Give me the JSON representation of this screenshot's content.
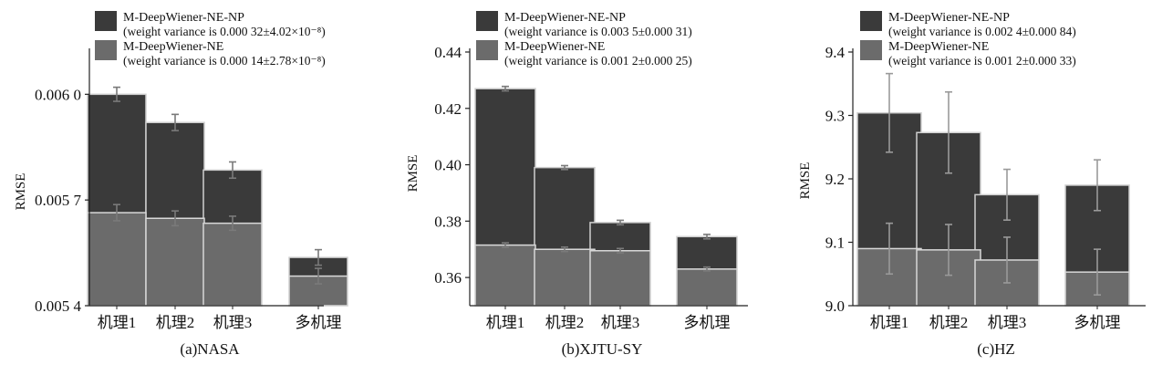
{
  "chart_data": [
    {
      "type": "bar",
      "caption": "(a)NASA",
      "ylabel": "RMSE",
      "categories": [
        "机理1",
        "机理2",
        "机理3",
        "多机理"
      ],
      "ylim": [
        0.0054,
        0.00612
      ],
      "yticks": [
        0.0054,
        0.0057,
        0.006
      ],
      "ytick_labels": [
        "0.005 4",
        "0.005 7",
        "0.006 0"
      ],
      "legend": [
        {
          "line1": "M-DeepWiener-NE-NP",
          "line2": "(weight variance is 0.000 32±4.02×10⁻⁸)",
          "color": "#3a3a3a"
        },
        {
          "line1": "M-DeepWiener-NE",
          "line2": "(weight variance is 0.000 14±2.78×10⁻⁸)",
          "color": "#6b6b6b"
        }
      ],
      "series": [
        {
          "name": "M-DeepWiener-NE-NP",
          "color": "#3a3a3a",
          "values": [
            0.006,
            0.00592,
            0.005785,
            0.005537
          ],
          "error": [
            2e-05,
            2.3e-05,
            2.3e-05,
            2.2e-05
          ]
        },
        {
          "name": "M-DeepWiener-NE",
          "color": "#6b6b6b",
          "values": [
            0.005664,
            0.005648,
            0.005634,
            0.005484
          ],
          "error": [
            2.3e-05,
            2.1e-05,
            2e-05,
            2.2e-05
          ]
        }
      ]
    },
    {
      "type": "bar",
      "caption": "(b)XJTU-SY",
      "ylabel": "RMSE",
      "categories": [
        "机理1",
        "机理2",
        "机理3",
        "多机理"
      ],
      "ylim": [
        0.35,
        0.44
      ],
      "yticks": [
        0.36,
        0.38,
        0.4,
        0.42,
        0.44
      ],
      "ytick_labels": [
        "0.36",
        "0.38",
        "0.40",
        "0.42",
        "0.44"
      ],
      "legend": [
        {
          "line1": "M-DeepWiener-NE-NP",
          "line2": "(weight variance is 0.003 5±0.000 31)",
          "color": "#3a3a3a"
        },
        {
          "line1": "M-DeepWiener-NE",
          "line2": "(weight variance is 0.001 2±0.000 25)",
          "color": "#6b6b6b"
        }
      ],
      "series": [
        {
          "name": "M-DeepWiener-NE-NP",
          "color": "#3a3a3a",
          "values": [
            0.427,
            0.399,
            0.3795,
            0.3745
          ],
          "error": [
            0.0008,
            0.0007,
            0.0008,
            0.0008
          ]
        },
        {
          "name": "M-DeepWiener-NE",
          "color": "#6b6b6b",
          "values": [
            0.3715,
            0.37,
            0.3695,
            0.363
          ],
          "error": [
            0.0008,
            0.0008,
            0.0008,
            0.0007
          ]
        }
      ]
    },
    {
      "type": "bar",
      "caption": "(c)HZ",
      "ylabel": "RMSE",
      "categories": [
        "机理1",
        "机理2",
        "机理3",
        "多机理"
      ],
      "ylim": [
        9.0,
        9.4
      ],
      "yticks": [
        9.0,
        9.1,
        9.2,
        9.3,
        9.4
      ],
      "ytick_labels": [
        "9.0",
        "9.1",
        "9.2",
        "9.3",
        "9.4"
      ],
      "legend": [
        {
          "line1": "M-DeepWiener-NE-NP",
          "line2": "(weight variance is 0.002 4±0.000 84)",
          "color": "#3a3a3a"
        },
        {
          "line1": "M-DeepWiener-NE",
          "line2": "(weight variance is 0.001 2±0.000 33)",
          "color": "#6b6b6b"
        }
      ],
      "series": [
        {
          "name": "M-DeepWiener-NE-NP",
          "color": "#3a3a3a",
          "values": [
            9.304,
            9.273,
            9.175,
            9.19
          ],
          "error": [
            0.062,
            0.064,
            0.04,
            0.04
          ]
        },
        {
          "name": "M-DeepWiener-NE",
          "color": "#6b6b6b",
          "values": [
            9.09,
            9.088,
            9.072,
            9.053
          ],
          "error": [
            0.04,
            0.04,
            0.036,
            0.036
          ]
        }
      ]
    }
  ]
}
